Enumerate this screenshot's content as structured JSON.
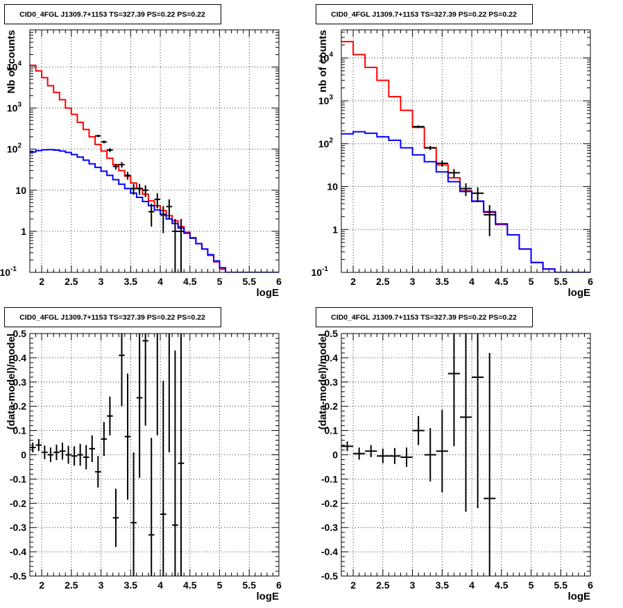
{
  "chart_data": [
    {
      "type": "line",
      "title": "CID0_4FGL J1309.7+1153 TS=327.39 PS=0.22 PS=0.22",
      "xlabel": "logE",
      "ylabel": "Nb of counts",
      "xlim": [
        1.8,
        6.0
      ],
      "ylim": [
        0.1,
        80000
      ],
      "yscale": "log",
      "grid": true,
      "xticks": [
        "2",
        "2.5",
        "3",
        "3.5",
        "4",
        "4.5",
        "5",
        "5.5",
        "6"
      ],
      "yticks": [
        "10^-1",
        "1",
        "10",
        "10^2",
        "10^3",
        "10^4"
      ],
      "series": [
        {
          "color": "#ff0000",
          "style": "step",
          "binwidth": 0.1,
          "x": [
            1.85,
            1.95,
            2.05,
            2.15,
            2.25,
            2.35,
            2.45,
            2.55,
            2.65,
            2.75,
            2.85,
            2.95,
            3.05,
            3.15,
            3.25,
            3.35,
            3.45,
            3.55,
            3.65,
            3.75,
            3.85,
            3.95,
            4.05,
            4.15,
            4.25,
            4.35,
            4.45,
            4.55,
            4.65,
            4.75,
            4.85,
            4.95,
            5.05,
            5.15,
            5.25,
            5.35,
            5.45,
            5.55,
            5.65,
            5.75,
            5.85,
            5.95
          ],
          "y": [
            11000,
            8000,
            5500,
            3500,
            2400,
            1600,
            1000,
            700,
            450,
            300,
            200,
            130,
            90,
            60,
            42,
            30,
            22,
            15,
            11,
            8,
            5.5,
            4.2,
            3.2,
            2.4,
            1.8,
            1.3,
            0.95,
            0.7,
            0.5,
            0.37,
            0.26,
            0.18,
            0.12,
            0.1,
            0.1,
            0.1,
            0.1,
            0.1,
            0.1,
            0.1,
            0.1,
            0.1
          ]
        },
        {
          "color": "#0000ff",
          "style": "step",
          "binwidth": 0.1,
          "x": [
            1.85,
            1.95,
            2.05,
            2.15,
            2.25,
            2.35,
            2.45,
            2.55,
            2.65,
            2.75,
            2.85,
            2.95,
            3.05,
            3.15,
            3.25,
            3.35,
            3.45,
            3.55,
            3.65,
            3.75,
            3.85,
            3.95,
            4.05,
            4.15,
            4.25,
            4.35,
            4.45,
            4.55,
            4.65,
            4.75,
            4.85,
            4.95,
            5.05,
            5.15,
            5.25,
            5.35,
            5.45,
            5.55,
            5.65,
            5.75,
            5.85,
            5.95
          ],
          "y": [
            85,
            92,
            96,
            97,
            95,
            90,
            83,
            74,
            64,
            54,
            44,
            36,
            29,
            23,
            18,
            14,
            11,
            8.5,
            6.7,
            5.3,
            4.2,
            3.3,
            2.6,
            2.0,
            1.55,
            1.2,
            0.9,
            0.68,
            0.5,
            0.37,
            0.27,
            0.19,
            0.13,
            0.1,
            0.1,
            0.1,
            0.1,
            0.1,
            0.1,
            0.1,
            0.1,
            0.1
          ]
        },
        {
          "color": "#000000",
          "style": "points",
          "x": [
            2.95,
            3.05,
            3.15,
            3.25,
            3.35,
            3.45,
            3.55,
            3.65,
            3.75,
            3.85,
            3.95,
            4.05,
            4.15,
            4.25,
            4.35
          ],
          "y": [
            210,
            150,
            95,
            38,
            42,
            23,
            11,
            11,
            10,
            3,
            6,
            2.5,
            4,
            1,
            1
          ],
          "yerr": [
            15,
            12,
            10,
            6,
            6.5,
            5,
            3.3,
            3.3,
            3.2,
            1.7,
            2.4,
            1.6,
            2,
            1,
            1
          ]
        }
      ]
    },
    {
      "type": "line",
      "title": "CID0_4FGL J1309.7+1153 TS=327.39 PS=0.22 PS=0.22",
      "xlabel": "logE",
      "ylabel": "nb of counts",
      "xlim": [
        1.8,
        6.0
      ],
      "ylim": [
        0.1,
        45000
      ],
      "yscale": "log",
      "grid": true,
      "xticks": [
        "2",
        "2.5",
        "3",
        "3.5",
        "4",
        "4.5",
        "5",
        "5.5",
        "6"
      ],
      "yticks": [
        "10^-1",
        "1",
        "10",
        "10^2",
        "10^3",
        "10^4"
      ],
      "series": [
        {
          "color": "#ff0000",
          "style": "step",
          "binwidth": 0.2,
          "x": [
            1.9,
            2.1,
            2.3,
            2.5,
            2.7,
            2.9,
            3.1,
            3.3,
            3.5,
            3.7,
            3.9,
            4.1,
            4.3,
            4.5,
            4.7,
            4.9,
            5.1,
            5.3,
            5.5,
            5.7,
            5.9
          ],
          "y": [
            24000,
            12000,
            6000,
            3000,
            1250,
            600,
            240,
            80,
            32,
            16,
            8,
            4.5,
            2.5,
            1.3,
            0.75,
            0.35,
            0.17,
            0.12,
            0.1,
            0.1,
            0.1
          ]
        },
        {
          "color": "#0000ff",
          "style": "step",
          "binwidth": 0.2,
          "x": [
            1.9,
            2.1,
            2.3,
            2.5,
            2.7,
            2.9,
            3.1,
            3.3,
            3.5,
            3.7,
            3.9,
            4.1,
            4.3,
            4.5,
            4.7,
            4.9,
            5.1,
            5.3,
            5.5,
            5.7,
            5.9
          ],
          "y": [
            170,
            190,
            175,
            145,
            120,
            80,
            55,
            38,
            22,
            13,
            7.7,
            4.6,
            2.6,
            1.35,
            0.75,
            0.35,
            0.17,
            0.12,
            0.1,
            0.1,
            0.1
          ]
        },
        {
          "color": "#000000",
          "style": "points",
          "x": [
            3.1,
            3.3,
            3.5,
            3.7,
            3.9,
            4.1,
            4.3
          ],
          "y": [
            250,
            80,
            35,
            21,
            9,
            7,
            2.2
          ],
          "yerr": [
            16,
            9,
            6,
            4.6,
            3,
            2.6,
            1.5
          ]
        }
      ]
    },
    {
      "type": "scatter",
      "title": "CID0_4FGL J1309.7+1153 TS=327.39 PS=0.22 PS=0.22",
      "xlabel": "logE",
      "ylabel": "(data-model)/model",
      "xlim": [
        1.8,
        6.0
      ],
      "ylim": [
        -0.5,
        0.5
      ],
      "grid": true,
      "xticks": [
        "2",
        "2.5",
        "3",
        "3.5",
        "4",
        "4.5",
        "5",
        "5.5",
        "6"
      ],
      "yticks": [
        "-0.5",
        "-0.4",
        "-0.3",
        "-0.2",
        "-0.1",
        "0",
        "0.1",
        "0.2",
        "0.3",
        "0.4",
        "0.5"
      ],
      "series": [
        {
          "color": "#000000",
          "binwidth": 0.1,
          "x": [
            1.85,
            1.95,
            2.05,
            2.15,
            2.25,
            2.35,
            2.45,
            2.55,
            2.65,
            2.75,
            2.85,
            2.95,
            3.05,
            3.15,
            3.25,
            3.35,
            3.45,
            3.55,
            3.65,
            3.75,
            3.85,
            3.95,
            4.05,
            4.15,
            4.25,
            4.35
          ],
          "y": [
            0.03,
            0.04,
            0.01,
            0.0,
            0.01,
            0.015,
            0.0,
            -0.005,
            0.0,
            -0.01,
            0.025,
            -0.07,
            0.065,
            0.16,
            -0.26,
            0.41,
            0.075,
            -0.28,
            0.235,
            0.47,
            -0.33,
            0.58,
            -0.245,
            0.61,
            -0.29,
            -0.035
          ],
          "yerr": [
            0.02,
            0.025,
            0.028,
            0.03,
            0.032,
            0.035,
            0.037,
            0.04,
            0.045,
            0.05,
            0.055,
            0.065,
            0.07,
            0.08,
            0.12,
            0.21,
            0.26,
            0.29,
            0.33,
            0.35,
            0.4,
            0.5,
            0.55,
            0.6,
            0.72,
            0.8
          ]
        }
      ]
    },
    {
      "type": "scatter",
      "title": "CID0_4FGL J1309.7+1153 TS=327.39 PS=0.22 PS=0.22",
      "xlabel": "logE",
      "ylabel": "(data-model)/model",
      "xlim": [
        1.8,
        6.0
      ],
      "ylim": [
        -0.5,
        0.5
      ],
      "grid": true,
      "xticks": [
        "2",
        "2.5",
        "3",
        "3.5",
        "4",
        "4.5",
        "5",
        "5.5",
        "6"
      ],
      "yticks": [
        "-0.5",
        "-0.4",
        "-0.3",
        "-0.2",
        "-0.1",
        "0",
        "0.1",
        "0.2",
        "0.3",
        "0.4",
        "0.5"
      ],
      "series": [
        {
          "color": "#000000",
          "binwidth": 0.2,
          "x": [
            1.9,
            2.1,
            2.3,
            2.5,
            2.7,
            2.9,
            3.1,
            3.3,
            3.5,
            3.7,
            3.9,
            4.1,
            4.3
          ],
          "y": [
            0.035,
            0.005,
            0.015,
            -0.005,
            -0.005,
            -0.01,
            0.1,
            0.0,
            0.015,
            0.335,
            0.155,
            0.32,
            -0.18
          ],
          "yerr": [
            0.02,
            0.025,
            0.025,
            0.03,
            0.033,
            0.04,
            0.06,
            0.11,
            0.17,
            0.3,
            0.39,
            0.54,
            0.6
          ]
        }
      ]
    }
  ]
}
